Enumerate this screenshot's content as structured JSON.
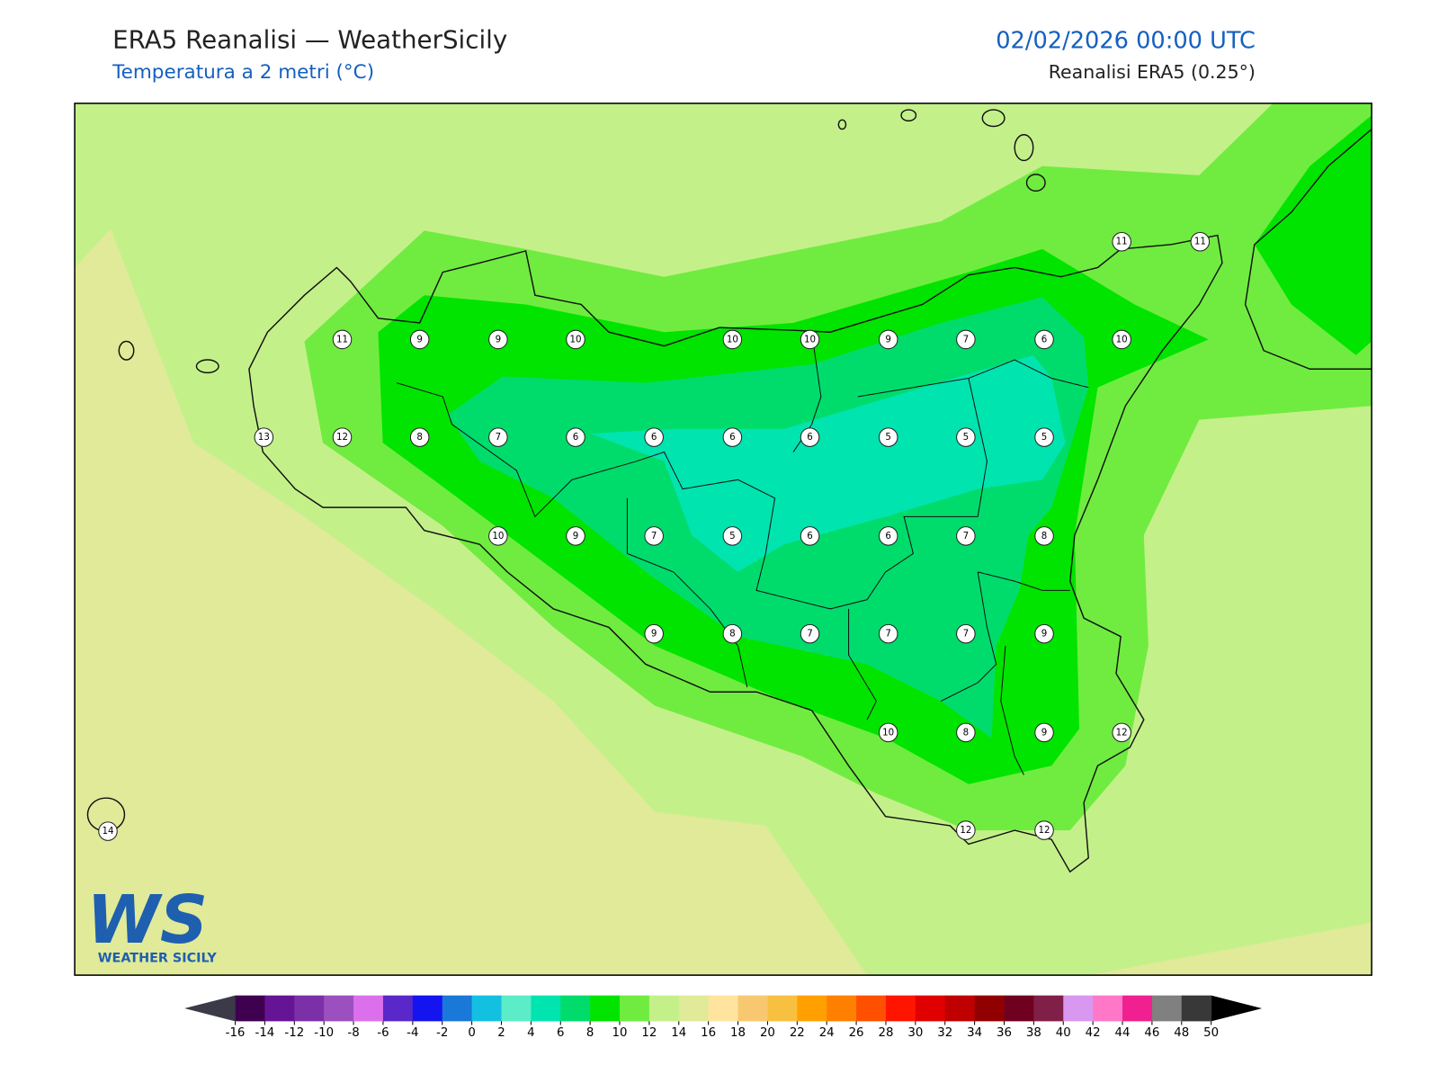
{
  "header": {
    "title": "ERA5 Reanalisi — WeatherSicily",
    "subtitle": "Temperatura a 2 metri (°C)",
    "datetime": "02/02/2026 00:00 UTC",
    "source": "Reanalisi ERA5 (0.25°)"
  },
  "map": {
    "stations": [
      11,
      9,
      9,
      10,
      10,
      10,
      9,
      7,
      6,
      10,
      13,
      12,
      8,
      7,
      6,
      6,
      6,
      6,
      5,
      5,
      5,
      10,
      9,
      7,
      5,
      6,
      6,
      7,
      8,
      9,
      8,
      7,
      7,
      7,
      9,
      10,
      8,
      9,
      12,
      12,
      12,
      11,
      11,
      14
    ]
  },
  "colorbar": {
    "ticks": [
      -16,
      -14,
      -12,
      -10,
      -8,
      -6,
      -4,
      -2,
      0,
      2,
      4,
      6,
      8,
      10,
      12,
      14,
      16,
      18,
      20,
      22,
      24,
      26,
      28,
      30,
      32,
      34,
      36,
      38,
      40,
      42,
      44,
      46,
      48,
      50
    ],
    "colors": [
      "#400050",
      "#661496",
      "#7c30a8",
      "#9c50c0",
      "#dc70ec",
      "#5a28c8",
      "#1414f0",
      "#1a78d8",
      "#14c0e0",
      "#5cecc8",
      "#00e4b0",
      "#00dc6c",
      "#00e400",
      "#70ec40",
      "#c4f08a",
      "#e0ea98",
      "#ffe4a0",
      "#f8c870",
      "#f8c040",
      "#ffa000",
      "#ff8000",
      "#ff5000",
      "#ff1400",
      "#e00000",
      "#c00000",
      "#900000",
      "#700020",
      "#802048",
      "#d898f0",
      "#ff78c8",
      "#f02090",
      "#808080",
      "#383838"
    ],
    "under": "#3a3a48",
    "over": "#000000"
  },
  "logo": {
    "mark": "WS",
    "name": "WEATHER SICILY"
  }
}
